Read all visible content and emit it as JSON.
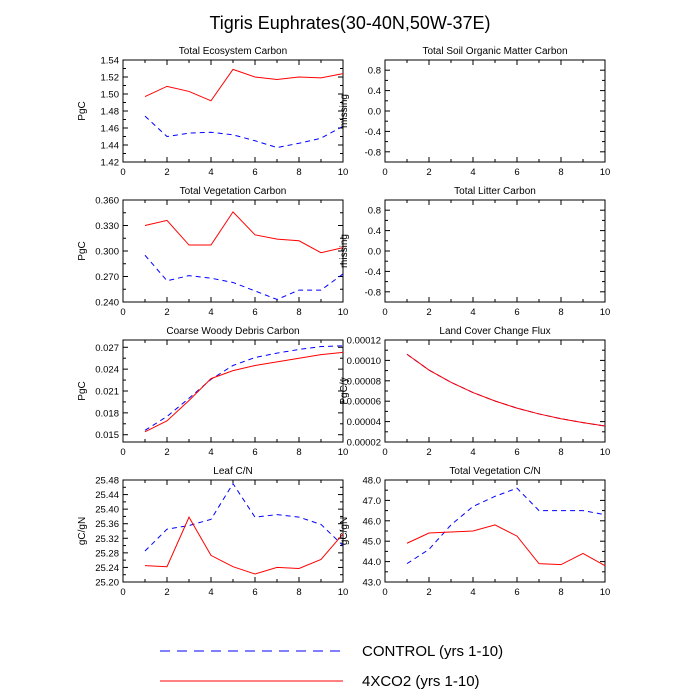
{
  "figure": {
    "title": "Tigris Euphrates(30-40N,50W-37E)"
  },
  "legend": {
    "items": [
      {
        "label": "CONTROL (yrs 1-10)",
        "color": "#0000ff",
        "style": "dashed"
      },
      {
        "label": "4XCO2 (yrs 1-10)",
        "color": "#ff0000",
        "style": "solid"
      }
    ]
  },
  "chart_data": [
    {
      "type": "line",
      "title": "Total Ecosystem Carbon",
      "xlabel": "",
      "ylabel": "PgC",
      "xlim": [
        0,
        10
      ],
      "ylim": [
        1.42,
        1.54
      ],
      "xticks": [
        0,
        2,
        4,
        6,
        8,
        10
      ],
      "xtick_labels": [
        "0",
        "2",
        "4",
        "6",
        "8",
        "10"
      ],
      "yticks": [
        1.42,
        1.44,
        1.46,
        1.48,
        1.5,
        1.52,
        1.54
      ],
      "ytick_labels": [
        "1.42",
        "1.44",
        "1.46",
        "1.48",
        "1.50",
        "1.52",
        "1.54"
      ],
      "x": [
        1,
        2,
        3,
        4,
        5,
        6,
        7,
        8,
        9,
        10
      ],
      "series": [
        {
          "name": "CONTROL (yrs 1-10)",
          "values": [
            1.474,
            1.45,
            1.454,
            1.455,
            1.452,
            1.445,
            1.437,
            1.442,
            1.448,
            1.462
          ]
        },
        {
          "name": "4XCO2 (yrs 1-10)",
          "values": [
            1.497,
            1.509,
            1.503,
            1.492,
            1.529,
            1.52,
            1.517,
            1.52,
            1.519,
            1.524
          ]
        }
      ]
    },
    {
      "type": "line",
      "title": "Total Soil Organic Matter Carbon",
      "xlabel": "",
      "ylabel": "missing",
      "xlim": [
        0,
        10
      ],
      "ylim": [
        -1,
        1
      ],
      "xticks": [
        0,
        2,
        4,
        6,
        8,
        10
      ],
      "xtick_labels": [
        "0",
        "2",
        "4",
        "6",
        "8",
        "10"
      ],
      "yticks": [
        -0.8,
        -0.4,
        0,
        0.4,
        0.8
      ],
      "ytick_labels": [
        "-0.8",
        "-0.4",
        "0.0",
        "0.4",
        "0.8"
      ],
      "x": [],
      "series": []
    },
    {
      "type": "line",
      "title": "Total Vegetation Carbon",
      "xlabel": "",
      "ylabel": "PgC",
      "xlim": [
        0,
        10
      ],
      "ylim": [
        0.24,
        0.36
      ],
      "xticks": [
        0,
        2,
        4,
        6,
        8,
        10
      ],
      "xtick_labels": [
        "0",
        "2",
        "4",
        "6",
        "8",
        "10"
      ],
      "yticks": [
        0.24,
        0.27,
        0.3,
        0.33,
        0.36
      ],
      "ytick_labels": [
        "0.240",
        "0.270",
        "0.300",
        "0.330",
        "0.360"
      ],
      "x": [
        1,
        2,
        3,
        4,
        5,
        6,
        7,
        8,
        9,
        10
      ],
      "series": [
        {
          "name": "CONTROL (yrs 1-10)",
          "values": [
            0.295,
            0.265,
            0.271,
            0.268,
            0.263,
            0.253,
            0.243,
            0.254,
            0.254,
            0.273
          ]
        },
        {
          "name": "4XCO2 (yrs 1-10)",
          "values": [
            0.33,
            0.336,
            0.307,
            0.307,
            0.346,
            0.319,
            0.314,
            0.312,
            0.298,
            0.304
          ]
        }
      ]
    },
    {
      "type": "line",
      "title": "Total Litter Carbon",
      "xlabel": "",
      "ylabel": "missing",
      "xlim": [
        0,
        10
      ],
      "ylim": [
        -1,
        1
      ],
      "xticks": [
        0,
        2,
        4,
        6,
        8,
        10
      ],
      "xtick_labels": [
        "0",
        "2",
        "4",
        "6",
        "8",
        "10"
      ],
      "yticks": [
        -0.8,
        -0.4,
        0,
        0.4,
        0.8
      ],
      "ytick_labels": [
        "-0.8",
        "-0.4",
        "0.0",
        "0.4",
        "0.8"
      ],
      "x": [],
      "series": []
    },
    {
      "type": "line",
      "title": "Coarse Woody Debris Carbon",
      "xlabel": "",
      "ylabel": "PgC",
      "xlim": [
        0,
        10
      ],
      "ylim": [
        0.014,
        0.028
      ],
      "xticks": [
        0,
        2,
        4,
        6,
        8,
        10
      ],
      "xtick_labels": [
        "0",
        "2",
        "4",
        "6",
        "8",
        "10"
      ],
      "yticks": [
        0.015,
        0.018,
        0.021,
        0.024,
        0.027
      ],
      "ytick_labels": [
        "0.015",
        "0.018",
        "0.021",
        "0.024",
        "0.027"
      ],
      "x": [
        1,
        2,
        3,
        4,
        5,
        6,
        7,
        8,
        9,
        10
      ],
      "series": [
        {
          "name": "CONTROL (yrs 1-10)",
          "values": [
            0.0156,
            0.0175,
            0.02,
            0.0226,
            0.0245,
            0.0256,
            0.0262,
            0.0267,
            0.0271,
            0.0272
          ]
        },
        {
          "name": "4XCO2 (yrs 1-10)",
          "values": [
            0.0154,
            0.0169,
            0.0197,
            0.0227,
            0.0238,
            0.0245,
            0.025,
            0.0255,
            0.026,
            0.0263
          ]
        }
      ]
    },
    {
      "type": "line",
      "title": "Land Cover Change Flux",
      "xlabel": "",
      "ylabel": "PgC/y",
      "xlim": [
        0,
        10
      ],
      "ylim": [
        2e-05,
        0.00012
      ],
      "xticks": [
        0,
        2,
        4,
        6,
        8,
        10
      ],
      "xtick_labels": [
        "0",
        "2",
        "4",
        "6",
        "8",
        "10"
      ],
      "yticks": [
        2e-05,
        4e-05,
        6e-05,
        8e-05,
        0.0001,
        0.00012
      ],
      "ytick_labels": [
        "0.00002",
        "0.00004",
        "0.00006",
        "0.00008",
        "0.00010",
        "0.00012"
      ],
      "x": [
        1,
        2,
        3,
        4,
        5,
        6,
        7,
        8,
        9,
        10
      ],
      "series": [
        {
          "name": "CONTROL (yrs 1-10)",
          "values": [
            0.000106,
            9.05e-05,
            7.85e-05,
            6.85e-05,
            6.02e-05,
            5.32e-05,
            4.75e-05,
            4.28e-05,
            3.9e-05,
            3.57e-05
          ]
        },
        {
          "name": "4XCO2 (yrs 1-10)",
          "values": [
            0.000106,
            9.05e-05,
            7.85e-05,
            6.85e-05,
            6.02e-05,
            5.32e-05,
            4.75e-05,
            4.28e-05,
            3.9e-05,
            3.57e-05
          ]
        }
      ]
    },
    {
      "type": "line",
      "title": "Leaf C/N",
      "xlabel": "",
      "ylabel": "gC/gN",
      "xlim": [
        0,
        10
      ],
      "ylim": [
        25.2,
        25.48
      ],
      "xticks": [
        0,
        2,
        4,
        6,
        8,
        10
      ],
      "xtick_labels": [
        "0",
        "2",
        "4",
        "6",
        "8",
        "10"
      ],
      "yticks": [
        25.2,
        25.24,
        25.28,
        25.32,
        25.36,
        25.4,
        25.44,
        25.48
      ],
      "ytick_labels": [
        "25.20",
        "25.24",
        "25.28",
        "25.32",
        "25.36",
        "25.40",
        "25.44",
        "25.48"
      ],
      "x": [
        1,
        2,
        3,
        4,
        5,
        6,
        7,
        8,
        9,
        10
      ],
      "series": [
        {
          "name": "CONTROL (yrs 1-10)",
          "values": [
            25.285,
            25.345,
            25.355,
            25.372,
            25.47,
            25.378,
            25.385,
            25.378,
            25.358,
            25.3
          ]
        },
        {
          "name": "4XCO2 (yrs 1-10)",
          "values": [
            25.245,
            25.242,
            25.378,
            25.273,
            25.242,
            25.222,
            25.24,
            25.237,
            25.262,
            25.332
          ]
        }
      ]
    },
    {
      "type": "line",
      "title": "Total Vegetation C/N",
      "xlabel": "",
      "ylabel": "gC/gN",
      "xlim": [
        0,
        10
      ],
      "ylim": [
        43,
        48
      ],
      "xticks": [
        0,
        2,
        4,
        6,
        8,
        10
      ],
      "xtick_labels": [
        "0",
        "2",
        "4",
        "6",
        "8",
        "10"
      ],
      "yticks": [
        43,
        44,
        45,
        46,
        47,
        48
      ],
      "ytick_labels": [
        "43.0",
        "44.0",
        "45.0",
        "46.0",
        "47.0",
        "48.0"
      ],
      "x": [
        1,
        2,
        3,
        4,
        5,
        6,
        7,
        8,
        9,
        10
      ],
      "series": [
        {
          "name": "CONTROL (yrs 1-10)",
          "values": [
            43.9,
            44.6,
            45.8,
            46.7,
            47.2,
            47.6,
            46.5,
            46.5,
            46.5,
            46.3
          ]
        },
        {
          "name": "4XCO2 (yrs 1-10)",
          "values": [
            44.9,
            45.4,
            45.45,
            45.5,
            45.8,
            45.25,
            43.9,
            43.85,
            44.4,
            43.8
          ]
        }
      ]
    }
  ]
}
